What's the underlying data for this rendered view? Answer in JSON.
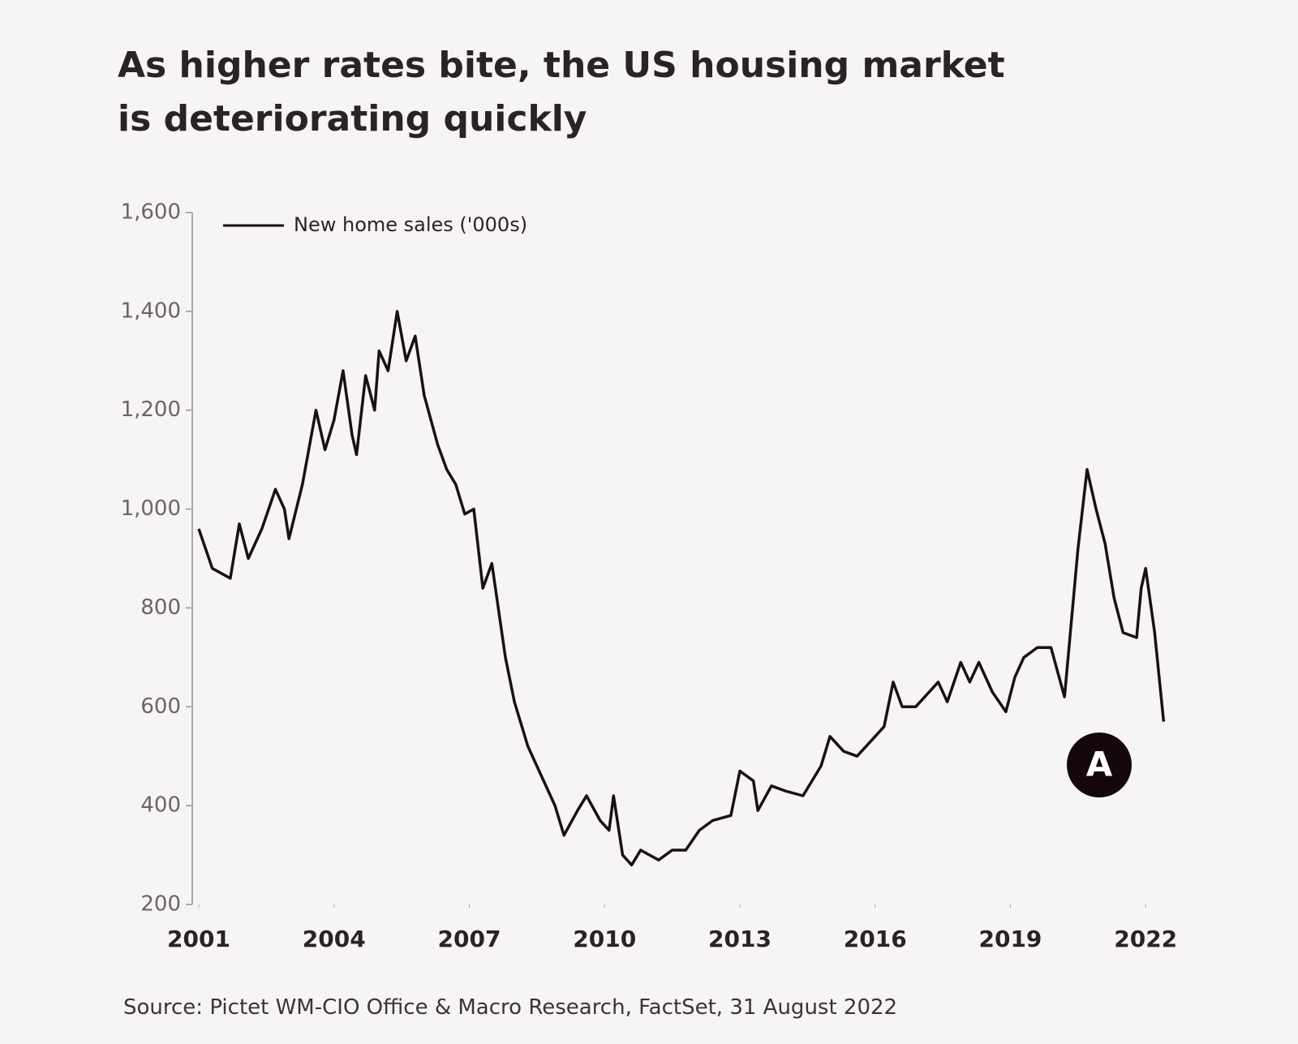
{
  "chart_data": {
    "type": "line",
    "title": "As higher rates bite, the US housing market is deteriorating quickly",
    "source": "Source: Pictet WM-CIO Office & Macro Research, FactSet, 31 August 2022",
    "annotation": "A",
    "legend": "top-left",
    "x": [
      2001.0,
      2001.3,
      2001.7,
      2001.9,
      2002.1,
      2002.4,
      2002.7,
      2002.9,
      2003.0,
      2003.3,
      2003.6,
      2003.8,
      2004.0,
      2004.2,
      2004.4,
      2004.5,
      2004.7,
      2004.9,
      2005.0,
      2005.2,
      2005.4,
      2005.6,
      2005.8,
      2006.0,
      2006.3,
      2006.5,
      2006.7,
      2006.9,
      2007.1,
      2007.3,
      2007.5,
      2007.8,
      2008.0,
      2008.3,
      2008.6,
      2008.9,
      2009.1,
      2009.4,
      2009.6,
      2009.9,
      2010.1,
      2010.2,
      2010.4,
      2010.6,
      2010.8,
      2011.0,
      2011.2,
      2011.5,
      2011.8,
      2012.1,
      2012.4,
      2012.8,
      2013.0,
      2013.3,
      2013.4,
      2013.7,
      2014.0,
      2014.4,
      2014.8,
      2015.0,
      2015.3,
      2015.6,
      2015.9,
      2016.2,
      2016.4,
      2016.6,
      2016.9,
      2017.1,
      2017.4,
      2017.6,
      2017.9,
      2018.1,
      2018.3,
      2018.6,
      2018.9,
      2019.1,
      2019.3,
      2019.6,
      2019.9,
      2020.2,
      2020.5,
      2020.7,
      2020.9,
      2021.1,
      2021.3,
      2021.5,
      2021.8,
      2021.9,
      2022.0,
      2022.2,
      2022.4
    ],
    "series": [
      {
        "name": "New home sales ('000s)",
        "color": "#1a1014",
        "values": [
          960,
          880,
          860,
          970,
          900,
          960,
          1040,
          1000,
          940,
          1050,
          1200,
          1120,
          1180,
          1280,
          1150,
          1110,
          1270,
          1200,
          1320,
          1280,
          1400,
          1300,
          1350,
          1230,
          1130,
          1080,
          1050,
          990,
          1000,
          840,
          890,
          700,
          610,
          520,
          460,
          400,
          340,
          390,
          420,
          370,
          350,
          420,
          300,
          280,
          310,
          300,
          290,
          310,
          310,
          350,
          370,
          380,
          470,
          450,
          390,
          440,
          430,
          420,
          480,
          540,
          510,
          500,
          530,
          560,
          650,
          600,
          600,
          620,
          650,
          610,
          690,
          650,
          690,
          630,
          590,
          660,
          700,
          720,
          720,
          620,
          920,
          1080,
          1000,
          930,
          820,
          750,
          740,
          840,
          880,
          750,
          570
        ]
      }
    ],
    "xlim": [
      2001,
      2022.5
    ],
    "xticks": [
      2001,
      2004,
      2007,
      2010,
      2013,
      2016,
      2019,
      2022
    ],
    "ylim": [
      200,
      1600
    ],
    "yticks": [
      {
        "value": 200,
        "label": "200"
      },
      {
        "value": 400,
        "label": "400"
      },
      {
        "value": 600,
        "label": "600"
      },
      {
        "value": 800,
        "label": "800"
      },
      {
        "value": 1000,
        "label": "1,000"
      },
      {
        "value": 1200,
        "label": "1,200"
      },
      {
        "value": 1400,
        "label": "1,400"
      },
      {
        "value": 1600,
        "label": "1,600"
      }
    ]
  }
}
